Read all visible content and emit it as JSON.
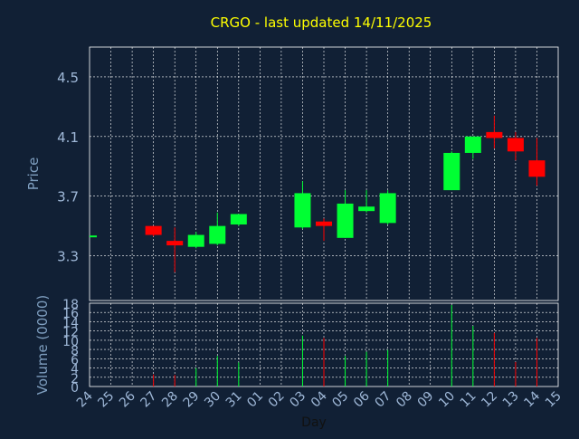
{
  "colors": {
    "background": "#112035",
    "grid": "#ffffff",
    "up": "#00ff33",
    "down": "#ff0000",
    "title": "#ffff00",
    "axis_text": "#9fb8d8"
  },
  "chart_data": [
    {
      "type": "candlestick",
      "title": "CRGO - last updated 14/11/2025",
      "ylabel": "Price",
      "xlabel": "",
      "ylim": [
        3.0,
        4.7
      ],
      "yticks": [
        "3.3",
        "3.7",
        "4.1",
        "4.5"
      ],
      "grid": true,
      "legend": "none",
      "reference_marker_price": 3.43,
      "categories": [
        "24",
        "25",
        "26",
        "27",
        "28",
        "29",
        "30",
        "31",
        "01",
        "02",
        "03",
        "04",
        "05",
        "06",
        "07",
        "08",
        "09",
        "10",
        "11",
        "12",
        "13",
        "14",
        "15"
      ],
      "candles": [
        {
          "day": "27",
          "open": 3.5,
          "high": 3.5,
          "low": 3.43,
          "close": 3.44,
          "dir": "down"
        },
        {
          "day": "28",
          "open": 3.4,
          "high": 3.49,
          "low": 3.19,
          "close": 3.37,
          "dir": "down"
        },
        {
          "day": "29",
          "open": 3.36,
          "high": 3.46,
          "low": 3.35,
          "close": 3.44,
          "dir": "up"
        },
        {
          "day": "30",
          "open": 3.38,
          "high": 3.59,
          "low": 3.37,
          "close": 3.5,
          "dir": "up"
        },
        {
          "day": "31",
          "open": 3.51,
          "high": 3.58,
          "low": 3.5,
          "close": 3.58,
          "dir": "up"
        },
        {
          "day": "03",
          "open": 3.49,
          "high": 3.8,
          "low": 3.48,
          "close": 3.72,
          "dir": "up"
        },
        {
          "day": "04",
          "open": 3.53,
          "high": 3.55,
          "low": 3.4,
          "close": 3.5,
          "dir": "down"
        },
        {
          "day": "05",
          "open": 3.42,
          "high": 3.74,
          "low": 3.42,
          "close": 3.65,
          "dir": "up"
        },
        {
          "day": "06",
          "open": 3.6,
          "high": 3.74,
          "low": 3.59,
          "close": 3.63,
          "dir": "up"
        },
        {
          "day": "07",
          "open": 3.52,
          "high": 3.74,
          "low": 3.51,
          "close": 3.72,
          "dir": "up"
        },
        {
          "day": "10",
          "open": 3.74,
          "high": 4.0,
          "low": 3.74,
          "close": 3.99,
          "dir": "up"
        },
        {
          "day": "11",
          "open": 3.99,
          "high": 4.1,
          "low": 3.95,
          "close": 4.1,
          "dir": "up"
        },
        {
          "day": "12",
          "open": 4.13,
          "high": 4.24,
          "low": 4.02,
          "close": 4.09,
          "dir": "down"
        },
        {
          "day": "13",
          "open": 4.09,
          "high": 4.13,
          "low": 3.94,
          "close": 4.0,
          "dir": "down"
        },
        {
          "day": "14",
          "open": 3.94,
          "high": 4.09,
          "low": 3.77,
          "close": 3.83,
          "dir": "down"
        }
      ]
    },
    {
      "type": "bar",
      "ylabel": "Volume (0000)",
      "xlabel": "Day",
      "ylim": [
        0,
        18
      ],
      "yticks": [
        "0",
        "2",
        "4",
        "6",
        "8",
        "10",
        "12",
        "14",
        "16",
        "18"
      ],
      "categories": [
        "24",
        "25",
        "26",
        "27",
        "28",
        "29",
        "30",
        "31",
        "01",
        "02",
        "03",
        "04",
        "05",
        "06",
        "07",
        "08",
        "09",
        "10",
        "11",
        "12",
        "13",
        "14",
        "15"
      ],
      "bars": [
        {
          "day": "27",
          "value": 2.6,
          "dir": "down"
        },
        {
          "day": "28",
          "value": 2.5,
          "dir": "down"
        },
        {
          "day": "29",
          "value": 4.0,
          "dir": "up"
        },
        {
          "day": "30",
          "value": 6.6,
          "dir": "up"
        },
        {
          "day": "31",
          "value": 5.2,
          "dir": "up"
        },
        {
          "day": "03",
          "value": 11.0,
          "dir": "up"
        },
        {
          "day": "04",
          "value": 10.5,
          "dir": "down"
        },
        {
          "day": "05",
          "value": 6.6,
          "dir": "up"
        },
        {
          "day": "06",
          "value": 7.5,
          "dir": "up"
        },
        {
          "day": "07",
          "value": 7.9,
          "dir": "up"
        },
        {
          "day": "10",
          "value": 17.6,
          "dir": "up"
        },
        {
          "day": "11",
          "value": 13.1,
          "dir": "up"
        },
        {
          "day": "12",
          "value": 11.6,
          "dir": "down"
        },
        {
          "day": "13",
          "value": 5.3,
          "dir": "down"
        },
        {
          "day": "14",
          "value": 10.5,
          "dir": "down"
        }
      ]
    }
  ]
}
